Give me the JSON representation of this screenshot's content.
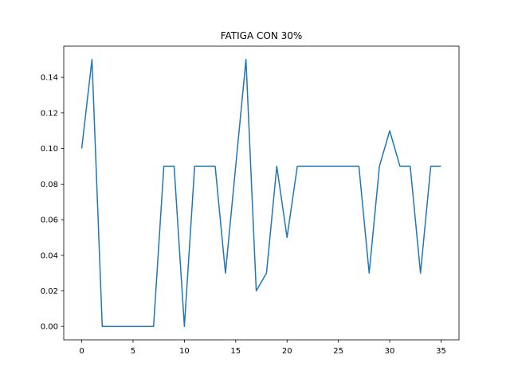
{
  "chart_data": {
    "type": "line",
    "title": "FATIGA CON 30%",
    "xlabel": "",
    "ylabel": "",
    "xlim": [
      -1.75,
      36.75
    ],
    "ylim": [
      -0.0075,
      0.1575
    ],
    "xticks": [
      0,
      5,
      10,
      15,
      20,
      25,
      30,
      35
    ],
    "xtick_labels": [
      "0",
      "5",
      "10",
      "15",
      "20",
      "25",
      "30",
      "35"
    ],
    "yticks": [
      0.0,
      0.02,
      0.04,
      0.06,
      0.08,
      0.1,
      0.12,
      0.14
    ],
    "ytick_labels": [
      "0.00",
      "0.02",
      "0.04",
      "0.06",
      "0.08",
      "0.10",
      "0.12",
      "0.14"
    ],
    "grid": false,
    "legend": "none",
    "colors": {
      "line": "#1f77b4",
      "axes": "#000000"
    },
    "series": [
      {
        "x": [
          0,
          1,
          2,
          3,
          4,
          5,
          6,
          7,
          8,
          9,
          10,
          11,
          12,
          13,
          14,
          15,
          16,
          17,
          18,
          19,
          20,
          21,
          22,
          23,
          24,
          25,
          26,
          27,
          28,
          29,
          30,
          31,
          32,
          33,
          34,
          35
        ],
        "values": [
          0.1,
          0.15,
          0.0,
          0.0,
          0.0,
          0.0,
          0.0,
          0.0,
          0.09,
          0.09,
          0.0,
          0.09,
          0.09,
          0.09,
          0.03,
          0.09,
          0.15,
          0.02,
          0.03,
          0.09,
          0.05,
          0.09,
          0.09,
          0.09,
          0.09,
          0.09,
          0.09,
          0.09,
          0.03,
          0.09,
          0.11,
          0.09,
          0.09,
          0.03,
          0.09,
          0.09
        ]
      }
    ]
  }
}
